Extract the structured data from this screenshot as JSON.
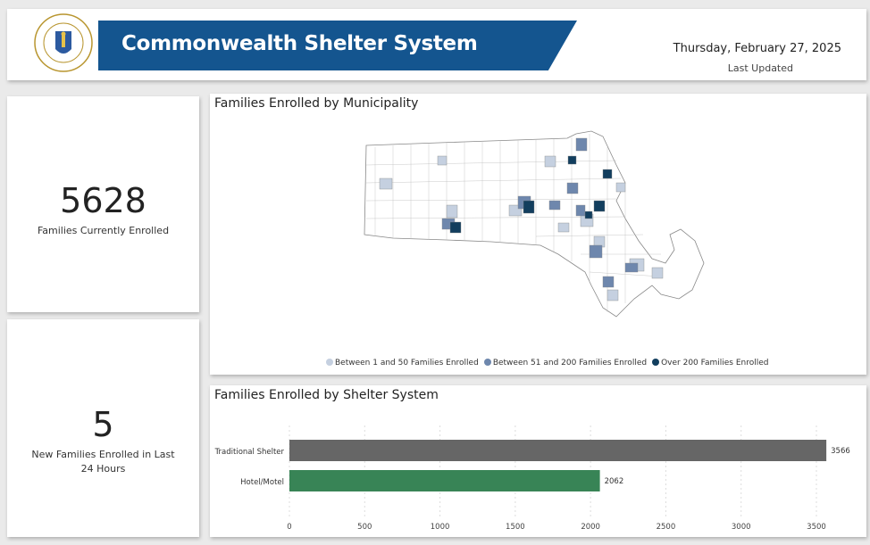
{
  "header": {
    "title": "Commonwealth Shelter System",
    "date": "Thursday, February 27, 2025",
    "last_updated_label": "Last Updated",
    "seal_text": "SIGILLUM REIPUBLICAE MASSACHUSETTENSIS"
  },
  "kpis": [
    {
      "value": "5628",
      "label": "Families Currently Enrolled"
    },
    {
      "value": "5",
      "label": "New Families Enrolled in Last 24 Hours"
    }
  ],
  "map": {
    "title": "Families Enrolled by Municipality",
    "legend": [
      {
        "label": "Between 1 and 50 Families Enrolled",
        "color": "#c5d0e0"
      },
      {
        "label": "Between 51 and 200 Families Enrolled",
        "color": "#6e87ad"
      },
      {
        "label": "Over 200 Families Enrolled",
        "color": "#123e5e"
      }
    ]
  },
  "chart_data": {
    "type": "bar",
    "orientation": "horizontal",
    "title": "Families Enrolled by Shelter System",
    "categories": [
      "Traditional Shelter",
      "Hotel/Motel"
    ],
    "values": [
      3566,
      2062
    ],
    "colors": [
      "#666666",
      "#388456"
    ],
    "xlim": [
      0,
      3600
    ],
    "xticks": [
      0,
      500,
      1000,
      1500,
      2000,
      2500,
      3000,
      3500
    ],
    "grid": true
  }
}
